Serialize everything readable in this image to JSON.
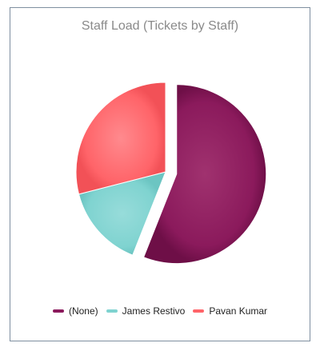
{
  "chart_data": {
    "type": "pie",
    "title": "Staff Load (Tickets by Staff)",
    "categories": [
      "(None)",
      "James Restivo",
      "Pavan Kumar"
    ],
    "values": [
      56,
      15,
      29
    ],
    "colors": [
      "#8b1a5c",
      "#7fd3d0",
      "#ff6469"
    ],
    "exploded": [
      true,
      false,
      false
    ],
    "legend_position": "bottom"
  }
}
